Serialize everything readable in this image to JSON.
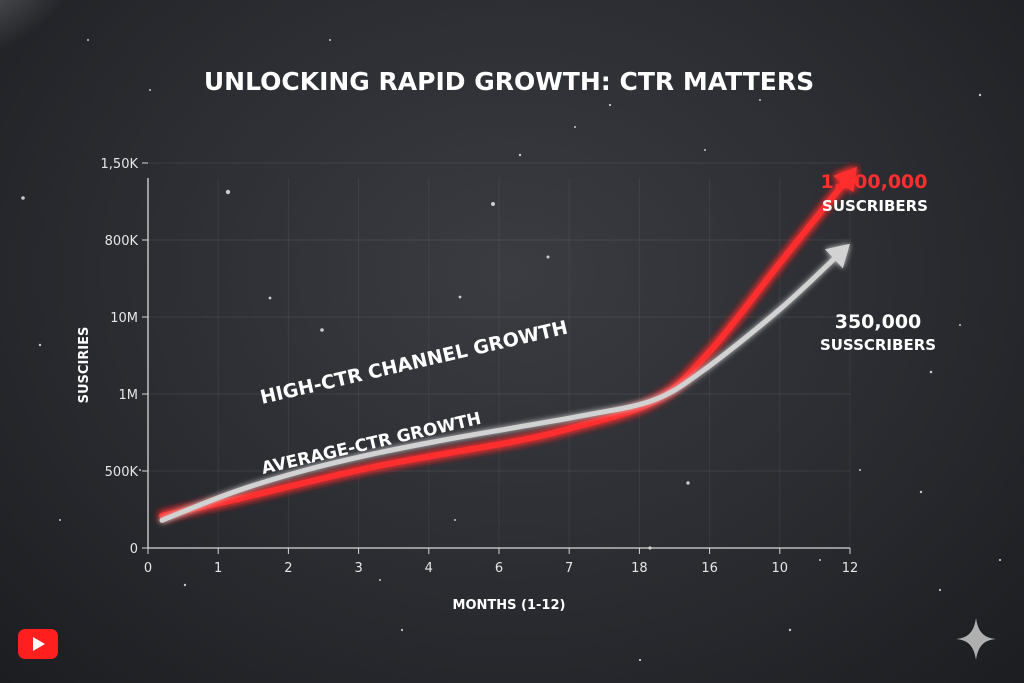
{
  "chart_data": {
    "type": "line",
    "title": "UNLOCKING RAPID GROWTH: CTR MATTERS",
    "xlabel": "MONTHS (1-12)",
    "ylabel": "SUSCIRIES",
    "x_ticks": [
      "0",
      "1",
      "2",
      "3",
      "4",
      "6",
      "7",
      "18",
      "16",
      "10",
      "12"
    ],
    "y_ticks": [
      "0",
      "500K",
      "1M",
      "10M",
      "800K",
      "1,50K"
    ],
    "grid": true,
    "series": [
      {
        "name": "HIGH-CTR CHANNEL GROWTH",
        "color": "#ff2e2e",
        "x": [
          0.2,
          1.2,
          2.2,
          3.2,
          4.2,
          5.2,
          6,
          7.2,
          8,
          9,
          10.1
        ],
        "y": [
          0.42,
          0.62,
          0.84,
          1.05,
          1.22,
          1.38,
          1.55,
          1.9,
          2.55,
          3.7,
          4.95
        ],
        "end_value": "1,500,000",
        "end_unit": "SUSCRIBERS"
      },
      {
        "name": "AVERAGE-CTR GROWTH",
        "color": "#d2d2d2",
        "x": [
          0.2,
          1.2,
          2.2,
          3.2,
          4.2,
          5.2,
          6.2,
          7.2,
          7.9,
          9,
          10.0
        ],
        "y": [
          0.36,
          0.72,
          1.0,
          1.22,
          1.4,
          1.56,
          1.72,
          1.92,
          2.3,
          3.1,
          3.95
        ],
        "end_value": "350,000",
        "end_unit": "SUSSCRIBERS"
      }
    ]
  },
  "colors": {
    "accent_red": "#ff2e2e",
    "accent_gray": "#d2d2d2",
    "background": "#2c2e33"
  },
  "icons": {
    "youtube": "youtube-logo-icon",
    "sparkle": "sparkle-icon"
  }
}
